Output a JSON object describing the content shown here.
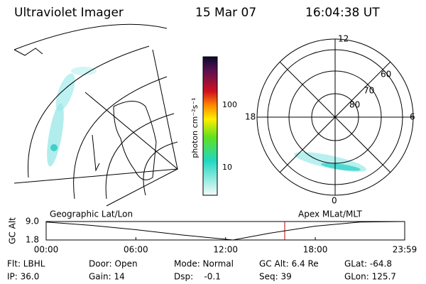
{
  "header": {
    "instrument": "Ultraviolet Imager",
    "date": "15 Mar 07",
    "time": "16:04:38 UT"
  },
  "colorbar": {
    "unit": "photon cm⁻²s⁻¹",
    "labels": [
      "100",
      "10"
    ]
  },
  "polar_plot": {
    "mlt_labels": [
      "12",
      "18",
      "6",
      "0"
    ],
    "mlat_labels": [
      "60",
      "70",
      "80"
    ]
  },
  "panel_labels": [
    "Geographic Lat/Lon",
    "Apex MLat/MLT"
  ],
  "altitude_plot": {
    "label": "GC Alt",
    "x": [
      0,
      3,
      6,
      9,
      12.5,
      15,
      18,
      21,
      23.98
    ],
    "values": [
      8.8,
      7.5,
      5.8,
      3.8,
      1.8,
      4.5,
      7.2,
      8.8,
      9.0
    ],
    "xlim": [
      0,
      23.98
    ],
    "ylim": [
      1.8,
      9.0
    ],
    "yticks": [
      {
        "value": 9,
        "label": "9.0"
      },
      1.8
    ],
    "xticks": [
      {
        "value": 0,
        "label": "00:00"
      },
      {
        "value": 6,
        "label": "06:00"
      },
      {
        "value": 12,
        "label": "12:00"
      },
      {
        "value": 18,
        "label": "18:00"
      },
      {
        "value": 23.98,
        "label": "23:59"
      }
    ]
  },
  "footer": [
    [
      "Flt: LBHL",
      "Door: Open",
      "Mode: Normal",
      "GC Alt: 6.4 Re",
      "GLat: -64.8"
    ],
    [
      "IP: 36.0",
      "Gain: 14",
      "Dsp:    -0.1",
      "Seq: 39",
      "GLon: 125.7"
    ]
  ]
}
